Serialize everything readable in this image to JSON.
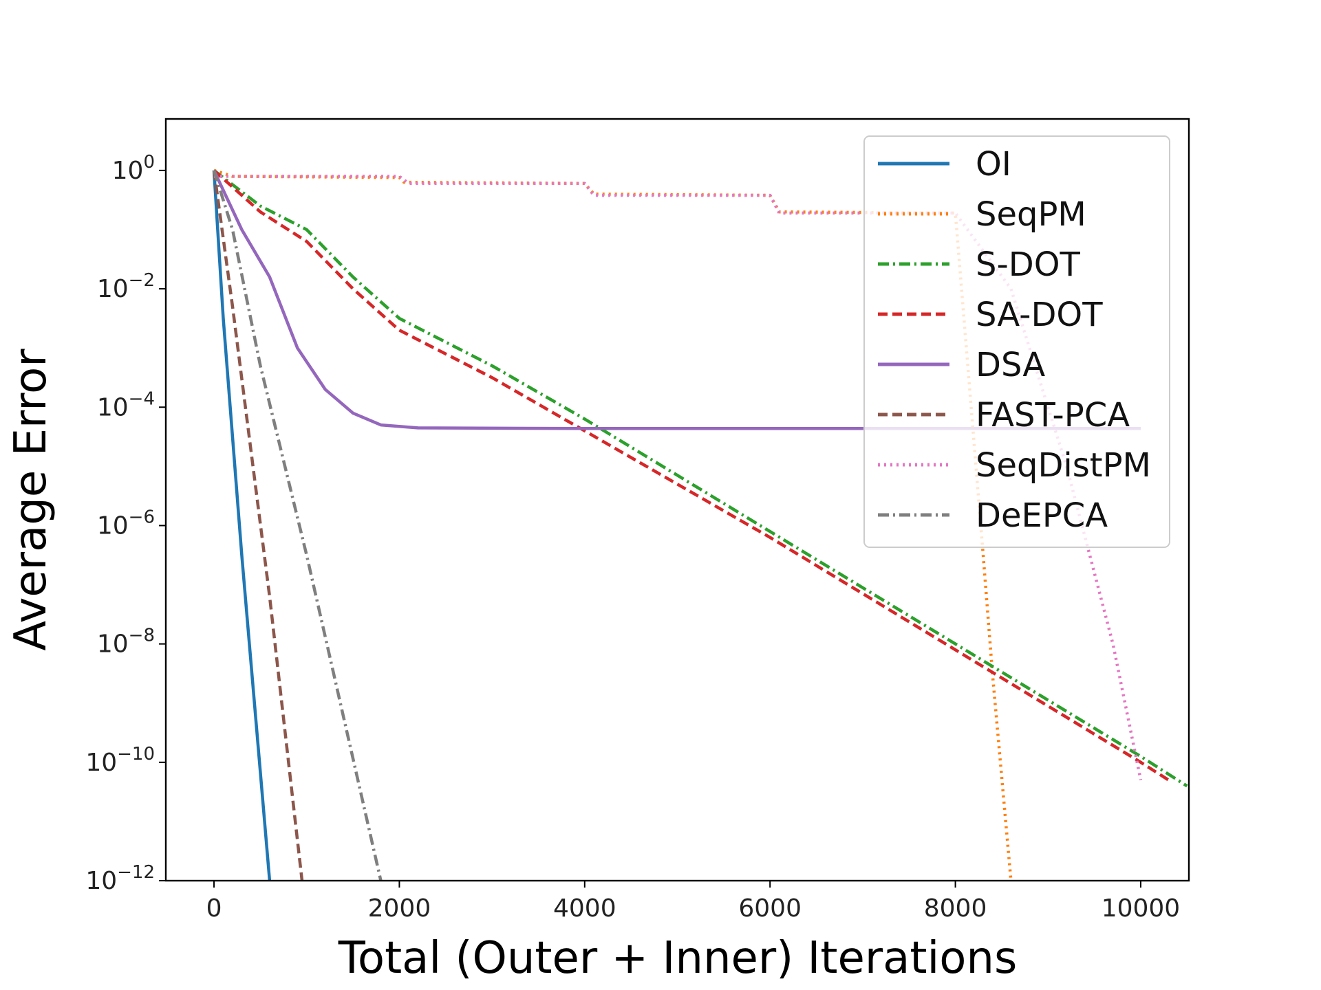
{
  "chart_data": {
    "type": "line",
    "title": "",
    "xlabel": "Total (Outer + Inner) Iterations",
    "ylabel": "Average Error",
    "yscale": "log",
    "xlim": [
      -520,
      10520
    ],
    "ylim_exp": [
      -12,
      0.87
    ],
    "x_ticks": [
      0,
      2000,
      4000,
      6000,
      8000,
      10000
    ],
    "x_tick_labels": [
      "0",
      "2000",
      "4000",
      "6000",
      "8000",
      "10000"
    ],
    "y_ticks_exp": [
      0,
      -2,
      -4,
      -6,
      -8,
      -10,
      -12
    ],
    "y_tick_labels": [
      {
        "base": "10",
        "exp": "0"
      },
      {
        "base": "10",
        "exp": "−2"
      },
      {
        "base": "10",
        "exp": "−4"
      },
      {
        "base": "10",
        "exp": "−6"
      },
      {
        "base": "10",
        "exp": "−8"
      },
      {
        "base": "10",
        "exp": "−10"
      },
      {
        "base": "10",
        "exp": "−12"
      }
    ],
    "legend_position": "top-right",
    "series": [
      {
        "name": "OI",
        "color": "#1f77b4",
        "style": "solid",
        "points": [
          [
            0,
            0
          ],
          [
            100,
            -2.5
          ],
          [
            300,
            -6.5
          ],
          [
            600,
            -12
          ]
        ]
      },
      {
        "name": "SeqPM",
        "color": "#ff7f0e",
        "style": "dotted",
        "points": [
          [
            0,
            0
          ],
          [
            200,
            -0.1
          ],
          [
            2000,
            -0.12
          ],
          [
            2050,
            -0.2
          ],
          [
            4000,
            -0.22
          ],
          [
            4100,
            -0.4
          ],
          [
            6000,
            -0.42
          ],
          [
            6100,
            -0.7
          ],
          [
            8000,
            -0.72
          ],
          [
            8300,
            -6.5
          ],
          [
            8400,
            -8.5
          ],
          [
            8600,
            -12
          ]
        ]
      },
      {
        "name": "S-DOT",
        "color": "#2ca02c",
        "style": "dashdot",
        "points": [
          [
            0,
            0
          ],
          [
            500,
            -0.6
          ],
          [
            1000,
            -1.0
          ],
          [
            1500,
            -1.8
          ],
          [
            2000,
            -2.5
          ],
          [
            3000,
            -3.3
          ],
          [
            4000,
            -4.2
          ],
          [
            6000,
            -6.1
          ],
          [
            8000,
            -8.0
          ],
          [
            10000,
            -9.9
          ],
          [
            10500,
            -10.4
          ]
        ]
      },
      {
        "name": "SA-DOT",
        "color": "#d62728",
        "style": "dashed",
        "points": [
          [
            0,
            0
          ],
          [
            500,
            -0.7
          ],
          [
            1000,
            -1.2
          ],
          [
            1500,
            -2.0
          ],
          [
            2000,
            -2.7
          ],
          [
            3000,
            -3.5
          ],
          [
            4000,
            -4.4
          ],
          [
            6000,
            -6.2
          ],
          [
            8000,
            -8.1
          ],
          [
            10000,
            -10.0
          ],
          [
            10300,
            -10.3
          ]
        ]
      },
      {
        "name": "DSA",
        "color": "#9467bd",
        "style": "solid",
        "points": [
          [
            0,
            0
          ],
          [
            300,
            -1.0
          ],
          [
            600,
            -1.8
          ],
          [
            900,
            -3.0
          ],
          [
            1200,
            -3.7
          ],
          [
            1500,
            -4.1
          ],
          [
            1800,
            -4.3
          ],
          [
            2200,
            -4.35
          ],
          [
            4000,
            -4.36
          ],
          [
            8000,
            -4.36
          ],
          [
            10000,
            -4.36
          ]
        ]
      },
      {
        "name": "FAST-PCA",
        "color": "#8c564b",
        "style": "dashed",
        "points": [
          [
            0,
            0
          ],
          [
            200,
            -2.3
          ],
          [
            600,
            -7.2
          ],
          [
            950,
            -12
          ]
        ]
      },
      {
        "name": "SeqDistPM",
        "color": "#e377c2",
        "style": "dotted",
        "points": [
          [
            0,
            -0.1
          ],
          [
            2000,
            -0.1
          ],
          [
            2100,
            -0.22
          ],
          [
            4000,
            -0.22
          ],
          [
            4100,
            -0.42
          ],
          [
            6000,
            -0.42
          ],
          [
            6100,
            -0.72
          ],
          [
            8000,
            -0.72
          ],
          [
            8600,
            -2.0
          ],
          [
            9200,
            -5.0
          ],
          [
            9700,
            -8.0
          ],
          [
            10000,
            -10.3
          ]
        ]
      },
      {
        "name": "DeEPCA",
        "color": "#7f7f7f",
        "style": "dashdot",
        "points": [
          [
            0,
            0
          ],
          [
            200,
            -1.0
          ],
          [
            500,
            -3.3
          ],
          [
            1000,
            -6.5
          ],
          [
            1800,
            -12
          ]
        ]
      }
    ]
  }
}
